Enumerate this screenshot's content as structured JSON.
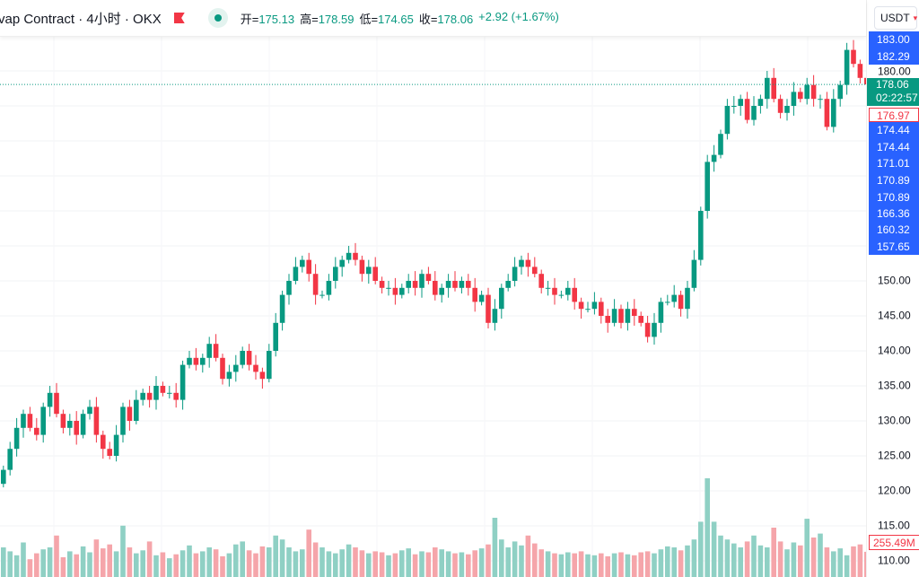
{
  "header": {
    "title": "vap Contract · 4小时 · OKX",
    "open_label": "开=",
    "open": "175.13",
    "high_label": "高=",
    "high": "178.59",
    "low_label": "低=",
    "low": "174.65",
    "close_label": "收=",
    "close": "178.06",
    "change": "+2.92 (+1.67%)",
    "currency": "USDT"
  },
  "axis": {
    "last_price": "178.06",
    "countdown": "02:22:57",
    "marked_price": "176.97",
    "top_tick": "180.00",
    "blue_labels_a": [
      "183.00",
      "182.29"
    ],
    "blue_labels_b": [
      "174.44",
      "174.44",
      "171.01"
    ],
    "blue_labels_c": [
      "170.89",
      "170.89",
      "166.36"
    ],
    "blue_labels_d": [
      "160.32",
      "157.65"
    ],
    "ticks": [
      "150.00",
      "145.00",
      "140.00",
      "135.00",
      "130.00",
      "125.00",
      "120.00",
      "115.00",
      "110.00"
    ],
    "volume_label": "255.49M"
  },
  "colors": {
    "up": "#089981",
    "down": "#f23645",
    "up_vol": "#8fd0c4",
    "down_vol": "#f5a5aa",
    "label_blue": "#2962ff"
  },
  "chart_data": {
    "type": "candlestick",
    "ylim": [
      109,
      184
    ],
    "closes": [
      123,
      126,
      129,
      131,
      129,
      128,
      132,
      134,
      131,
      129,
      130,
      128,
      131,
      132,
      128,
      126,
      125,
      128,
      132,
      130,
      133,
      134,
      133,
      135,
      134,
      134,
      133,
      138,
      139,
      138,
      139,
      141,
      139,
      136,
      137,
      138,
      140,
      138,
      137,
      136,
      140,
      144,
      148,
      150,
      152,
      153,
      151,
      148,
      148,
      150,
      152,
      153,
      154,
      153,
      151,
      152,
      150,
      149,
      149,
      148,
      149,
      150,
      149,
      151,
      150,
      148,
      149,
      150,
      149,
      150,
      149,
      147,
      148,
      144,
      146,
      149,
      150,
      152,
      153,
      152,
      151,
      149,
      149,
      148,
      148,
      149,
      147,
      146,
      146,
      147,
      145,
      144,
      146,
      144,
      146,
      145,
      144,
      142,
      144,
      147,
      147,
      148,
      146,
      149,
      153,
      160,
      167,
      168,
      171,
      175,
      175,
      176,
      173,
      175,
      176,
      179,
      176,
      174,
      175,
      177,
      176,
      178,
      176,
      176,
      172,
      176,
      178,
      183,
      181,
      179,
      178.06
    ],
    "volumes": [
      300,
      260,
      220,
      350,
      180,
      240,
      280,
      300,
      420,
      200,
      260,
      230,
      310,
      250,
      380,
      290,
      330,
      260,
      520,
      300,
      240,
      270,
      360,
      220,
      250,
      190,
      230,
      270,
      320,
      240,
      260,
      300,
      280,
      210,
      240,
      330,
      360,
      270,
      240,
      310,
      300,
      420,
      380,
      300,
      260,
      280,
      480,
      350,
      300,
      260,
      240,
      280,
      330,
      300,
      270,
      240,
      260,
      250,
      220,
      240,
      270,
      290,
      230,
      260,
      250,
      300,
      280,
      260,
      240,
      250,
      230,
      270,
      290,
      330,
      600,
      380,
      300,
      360,
      320,
      420,
      340,
      280,
      260,
      240,
      230,
      250,
      240,
      260,
      230,
      220,
      240,
      210,
      240,
      250,
      230,
      220,
      250,
      260,
      240,
      280,
      310,
      300,
      270,
      320,
      380,
      560,
      1000,
      560,
      420,
      380,
      340,
      300,
      360,
      420,
      320,
      300,
      500,
      360,
      280,
      350,
      320,
      590,
      400,
      440,
      300,
      260,
      290,
      220,
      310,
      330,
      255.49
    ]
  }
}
